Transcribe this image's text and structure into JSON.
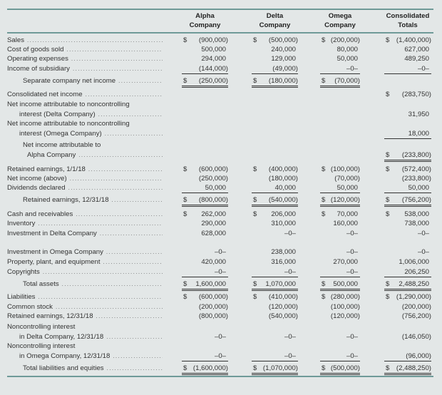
{
  "headers": [
    [
      "Alpha",
      "Company"
    ],
    [
      "Delta",
      "Company"
    ],
    [
      "Omega",
      "Company"
    ],
    [
      "Consolidated",
      "Totals"
    ]
  ],
  "rows": [
    {
      "label": [
        "Sales"
      ],
      "cells": [
        {
          "d": "$",
          "v": "(900,000)"
        },
        {
          "d": "$",
          "v": "(500,000)"
        },
        {
          "d": "$",
          "v": "(200,000)"
        },
        {
          "d": "$",
          "v": "(1,400,000)"
        }
      ]
    },
    {
      "label": [
        "Cost of goods sold"
      ],
      "cells": [
        {
          "v": "500,000"
        },
        {
          "v": "240,000"
        },
        {
          "v": "80,000"
        },
        {
          "v": "627,000"
        }
      ]
    },
    {
      "label": [
        "Operating expenses"
      ],
      "cells": [
        {
          "v": "294,000"
        },
        {
          "v": "129,000"
        },
        {
          "v": "50,000"
        },
        {
          "v": "489,250"
        }
      ]
    },
    {
      "label": [
        "Income of subsidiary"
      ],
      "cells": [
        {
          "v": "(144,000)"
        },
        {
          "v": "(49,000)"
        },
        {
          "v": "–0–"
        },
        {
          "v": "–0–"
        }
      ]
    },
    {
      "label": [
        "Separate company net income"
      ],
      "cells": [
        {
          "d": "$",
          "v": "(250,000)"
        },
        {
          "d": "$",
          "v": "(180,000)"
        },
        {
          "d": "$",
          "v": "(70,000)"
        },
        null
      ]
    },
    {
      "label": [
        "Consolidated net income"
      ],
      "cells": [
        null,
        null,
        null,
        {
          "d": "$",
          "v": "(283,750)"
        }
      ]
    },
    {
      "label": [
        "Net income attributable to noncontrolling",
        "interest (Delta Company)"
      ],
      "cells": [
        null,
        null,
        null,
        {
          "v": "31,950"
        }
      ]
    },
    {
      "label": [
        "Net income attributable to noncontrolling",
        "interest (Omega Company)"
      ],
      "cells": [
        null,
        null,
        null,
        {
          "v": "18,000"
        }
      ]
    },
    {
      "label": [
        "Net income attributable to",
        "Alpha Company"
      ],
      "cells": [
        null,
        null,
        null,
        {
          "d": "$",
          "v": "(233,800)"
        }
      ]
    },
    {
      "label": [
        "Retained earnings, 1/1/18"
      ],
      "cells": [
        {
          "d": "$",
          "v": "(600,000)"
        },
        {
          "d": "$",
          "v": "(400,000)"
        },
        {
          "d": "$",
          "v": "(100,000)"
        },
        {
          "d": "$",
          "v": "(572,400)"
        }
      ]
    },
    {
      "label": [
        "Net income (above)"
      ],
      "cells": [
        {
          "v": "(250,000)"
        },
        {
          "v": "(180,000)"
        },
        {
          "v": "(70,000)"
        },
        {
          "v": "(233,800)"
        }
      ]
    },
    {
      "label": [
        "Dividends declared"
      ],
      "cells": [
        {
          "v": "50,000"
        },
        {
          "v": "40,000"
        },
        {
          "v": "50,000"
        },
        {
          "v": "50,000"
        }
      ]
    },
    {
      "label": [
        "Retained earnings, 12/31/18"
      ],
      "cells": [
        {
          "d": "$",
          "v": "(800,000)"
        },
        {
          "d": "$",
          "v": "(540,000)"
        },
        {
          "d": "$",
          "v": "(120,000)"
        },
        {
          "d": "$",
          "v": "(756,200)"
        }
      ]
    },
    {
      "label": [
        "Cash and receivables"
      ],
      "cells": [
        {
          "d": "$",
          "v": "262,000"
        },
        {
          "d": "$",
          "v": "206,000"
        },
        {
          "d": "$",
          "v": "70,000"
        },
        {
          "d": "$",
          "v": "538,000"
        }
      ]
    },
    {
      "label": [
        "Inventory"
      ],
      "cells": [
        {
          "v": "290,000"
        },
        {
          "v": "310,000"
        },
        {
          "v": "160,000"
        },
        {
          "v": "738,000"
        }
      ]
    },
    {
      "label": [
        "Investment in Delta Company"
      ],
      "cells": [
        {
          "v": "628,000"
        },
        {
          "v": "–0–"
        },
        {
          "v": "–0–"
        },
        {
          "v": "–0–"
        }
      ]
    },
    {
      "label": [
        "Investment in Omega Company"
      ],
      "cells": [
        {
          "v": "–0–"
        },
        {
          "v": "238,000"
        },
        {
          "v": "–0–"
        },
        {
          "v": "–0–"
        }
      ]
    },
    {
      "label": [
        "Property, plant, and equipment"
      ],
      "cells": [
        {
          "v": "420,000"
        },
        {
          "v": "316,000"
        },
        {
          "v": "270,000"
        },
        {
          "v": "1,006,000"
        }
      ]
    },
    {
      "label": [
        "Copyrights"
      ],
      "cells": [
        {
          "v": "–0–"
        },
        {
          "v": "–0–"
        },
        {
          "v": "–0–"
        },
        {
          "v": "206,250"
        }
      ]
    },
    {
      "label": [
        "Total assets"
      ],
      "cells": [
        {
          "d": "$",
          "v": "1,600,000"
        },
        {
          "d": "$",
          "v": "1,070,000"
        },
        {
          "d": "$",
          "v": "500,000"
        },
        {
          "d": "$",
          "v": "2,488,250"
        }
      ]
    },
    {
      "label": [
        "Liabilities"
      ],
      "cells": [
        {
          "d": "$",
          "v": "(600,000)"
        },
        {
          "d": "$",
          "v": "(410,000)"
        },
        {
          "d": "$",
          "v": "(280,000)"
        },
        {
          "d": "$",
          "v": "(1,290,000)"
        }
      ]
    },
    {
      "label": [
        "Common stock"
      ],
      "cells": [
        {
          "v": "(200,000)"
        },
        {
          "v": "(120,000)"
        },
        {
          "v": "(100,000)"
        },
        {
          "v": "(200,000)"
        }
      ]
    },
    {
      "label": [
        "Retained earnings, 12/31/18"
      ],
      "cells": [
        {
          "v": "(800,000)"
        },
        {
          "v": "(540,000)"
        },
        {
          "v": "(120,000)"
        },
        {
          "v": "(756,200)"
        }
      ]
    },
    {
      "label": [
        "Noncontrolling interest",
        "in Delta Company, 12/31/18"
      ],
      "cells": [
        {
          "v": "–0–"
        },
        {
          "v": "–0–"
        },
        {
          "v": "–0–"
        },
        {
          "v": "(146,050)"
        }
      ]
    },
    {
      "label": [
        "Noncontrolling interest",
        "in Omega Company, 12/31/18"
      ],
      "cells": [
        {
          "v": "–0–"
        },
        {
          "v": "–0–"
        },
        {
          "v": "–0–"
        },
        {
          "v": "(96,000)"
        }
      ]
    },
    {
      "label": [
        "Total liabilities and equities"
      ],
      "cells": [
        {
          "d": "$",
          "v": "(1,600,000)"
        },
        {
          "d": "$",
          "v": "(1,070,000)"
        },
        {
          "d": "$",
          "v": "(500,000)"
        },
        {
          "d": "$",
          "v": "(2,488,250)"
        }
      ]
    }
  ]
}
